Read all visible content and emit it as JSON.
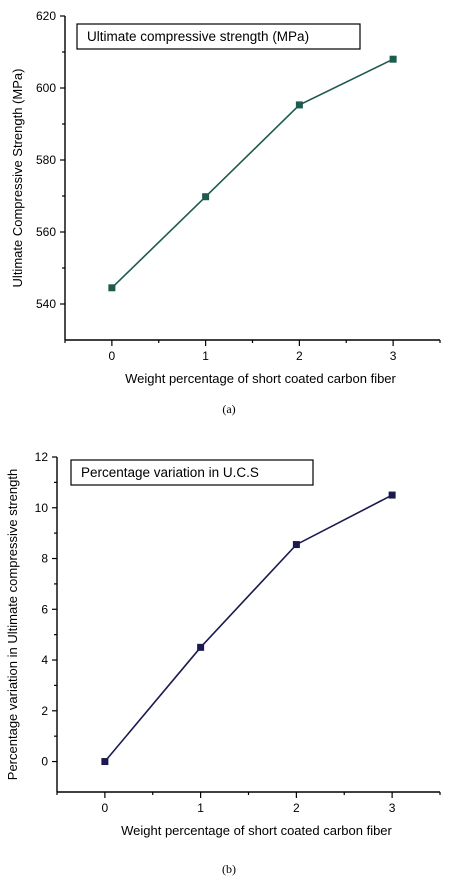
{
  "chart_data": [
    {
      "type": "line",
      "x": [
        0,
        1,
        2,
        3
      ],
      "xticks": [
        "0",
        "1",
        "2",
        "3"
      ],
      "xlim": [
        -0.5,
        3.5
      ],
      "series": [
        {
          "name": "Ultimate compressive strength (MPa)",
          "values": [
            544.5,
            569.8,
            595.3,
            608.0
          ],
          "color": "#1f5a4f"
        }
      ],
      "ylim": [
        530,
        620
      ],
      "yticks": [
        540,
        560,
        580,
        600,
        620
      ],
      "xlabel": "Weight percentage of short coated carbon fiber",
      "ylabel": "Ultimate Compressive Strength (MPa)",
      "legend_position": "top-left",
      "grid": false,
      "caption": "(a)"
    },
    {
      "type": "line",
      "x": [
        0,
        1,
        2,
        3
      ],
      "xticks": [
        "0",
        "1",
        "2",
        "3"
      ],
      "xlim": [
        -0.5,
        3.5
      ],
      "series": [
        {
          "name": "Percentage variation in U.C.S",
          "values": [
            0,
            4.5,
            8.55,
            10.5
          ],
          "color": "#1a1a4e"
        }
      ],
      "ylim": [
        -1.2,
        12
      ],
      "yticks": [
        0,
        2,
        4,
        6,
        8,
        10,
        12
      ],
      "xlabel": "Weight percentage of short coated carbon fiber",
      "ylabel": "Percentage variation in Ultimate compressive strength",
      "legend_position": "top-left",
      "grid": false,
      "caption": "(b)"
    }
  ]
}
